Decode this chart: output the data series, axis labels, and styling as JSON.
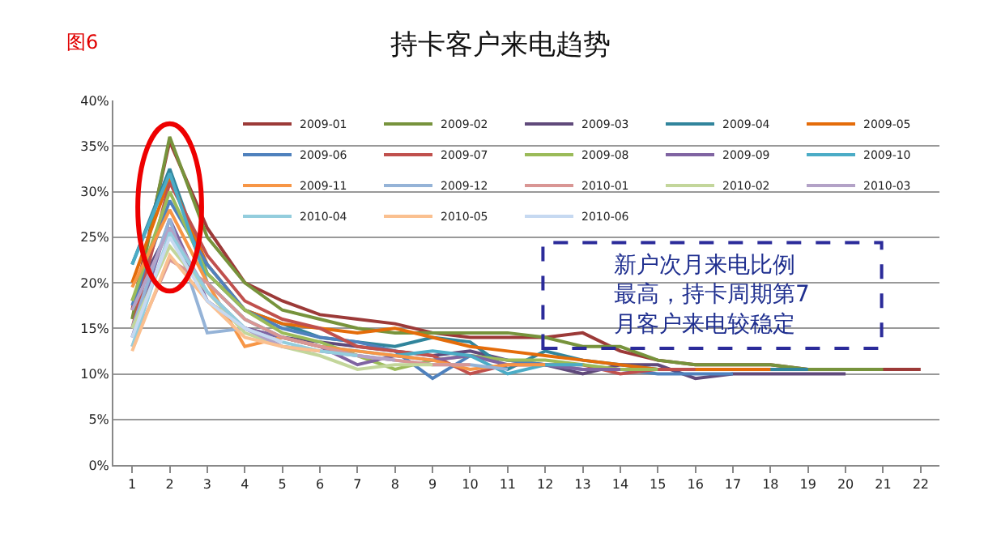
{
  "chart_data": {
    "type": "line",
    "title": "持卡客户来电趋势",
    "annotations": [
      "图6",
      "新户次月来电比例最高，持卡周期第7月客户来电较稳定"
    ],
    "x": [
      1,
      2,
      3,
      4,
      5,
      6,
      7,
      8,
      9,
      10,
      11,
      12,
      13,
      14,
      15,
      16,
      17,
      18,
      19,
      20,
      21,
      22
    ],
    "xlim": [
      0.5,
      22.5
    ],
    "xticks": [
      1,
      2,
      3,
      4,
      5,
      6,
      7,
      8,
      9,
      10,
      11,
      12,
      13,
      14,
      15,
      16,
      17,
      18,
      19,
      20,
      21,
      22
    ],
    "ylim": [
      0,
      40
    ],
    "yticks": [
      {
        "value": 0,
        "label": "0%"
      },
      {
        "value": 5,
        "label": "5%"
      },
      {
        "value": 10,
        "label": "10%"
      },
      {
        "value": 15,
        "label": "15%"
      },
      {
        "value": 20,
        "label": "20%"
      },
      {
        "value": 25,
        "label": "25%"
      },
      {
        "value": 30,
        "label": "30%"
      },
      {
        "value": 35,
        "label": "35%"
      },
      {
        "value": 40,
        "label": "40%"
      }
    ],
    "grid": "y",
    "legend": "top right",
    "marker": "none",
    "line_style": "solid",
    "series": [
      {
        "name": "2009-01",
        "color": "#9c3a38",
        "values": [
          17,
          35.5,
          26,
          20,
          18,
          16.5,
          16,
          15.5,
          14.5,
          14,
          14,
          14,
          14.5,
          12.5,
          11.5,
          11,
          11,
          11,
          10.5,
          10.5,
          10.5,
          10.5
        ]
      },
      {
        "name": "2009-02",
        "color": "#77933c",
        "values": [
          16,
          36,
          25,
          20,
          17,
          16,
          15,
          14.5,
          14.5,
          14.5,
          14.5,
          14,
          13,
          13,
          11.5,
          11,
          11,
          11,
          10.5,
          10.5,
          10.5,
          null
        ]
      },
      {
        "name": "2009-03",
        "color": "#604a7b",
        "values": [
          18,
          26,
          18,
          15,
          14,
          13.5,
          13,
          12.5,
          12,
          12.5,
          11.5,
          11,
          10,
          11,
          11,
          9.5,
          10,
          10,
          10,
          10,
          null,
          null
        ]
      },
      {
        "name": "2009-04",
        "color": "#31859c",
        "values": [
          22,
          32.5,
          21,
          17,
          15.5,
          14,
          13.5,
          13,
          14,
          13.5,
          10.5,
          12.5,
          11.5,
          11,
          10.5,
          10.5,
          10.5,
          10.5,
          10.5,
          null,
          null,
          null
        ]
      },
      {
        "name": "2009-05",
        "color": "#e46c0a",
        "values": [
          20,
          31.5,
          22,
          17,
          15.5,
          15,
          14.5,
          15,
          14,
          13,
          12.5,
          12,
          11.5,
          11,
          10.5,
          10.5,
          10.5,
          10.5,
          null,
          null,
          null,
          null
        ]
      },
      {
        "name": "2009-06",
        "color": "#4f81bd",
        "values": [
          17.5,
          29,
          22,
          17,
          15,
          14,
          13.5,
          12.5,
          9.5,
          12,
          11.5,
          11,
          10.5,
          10.5,
          10,
          10,
          10,
          null,
          null,
          null,
          null,
          null
        ]
      },
      {
        "name": "2009-07",
        "color": "#c0504d",
        "values": [
          15,
          31,
          23,
          18,
          16,
          15,
          13,
          12.5,
          12,
          10,
          11,
          11,
          11,
          10,
          10.5,
          10.5,
          null,
          null,
          null,
          null,
          null,
          null
        ]
      },
      {
        "name": "2009-08",
        "color": "#9bbb59",
        "values": [
          18,
          30,
          21,
          17,
          14.5,
          13.5,
          12,
          10.5,
          11.5,
          12,
          11.5,
          11.5,
          11,
          10.5,
          10.5,
          null,
          null,
          null,
          null,
          null,
          null,
          null
        ]
      },
      {
        "name": "2009-09",
        "color": "#8064a2",
        "values": [
          14,
          27,
          18,
          15,
          14,
          13,
          11,
          12,
          11.5,
          12,
          11,
          11,
          10.5,
          10.5,
          null,
          null,
          null,
          null,
          null,
          null,
          null,
          null
        ]
      },
      {
        "name": "2009-10",
        "color": "#4bacc6",
        "values": [
          22,
          32,
          20,
          16,
          14,
          13,
          12.5,
          12,
          12.5,
          12,
          10,
          11,
          11,
          null,
          null,
          null,
          null,
          null,
          null,
          null,
          null,
          null
        ]
      },
      {
        "name": "2009-11",
        "color": "#f79646",
        "values": [
          19.5,
          28,
          20,
          13,
          14,
          13,
          12.5,
          12,
          11.5,
          10.5,
          11,
          11,
          null,
          null,
          null,
          null,
          null,
          null,
          null,
          null,
          null,
          null
        ]
      },
      {
        "name": "2009-12",
        "color": "#95b3d7",
        "values": [
          15,
          27,
          14.5,
          15,
          13,
          12.5,
          12,
          11.5,
          11,
          11,
          10.5,
          null,
          null,
          null,
          null,
          null,
          null,
          null,
          null,
          null,
          null,
          null
        ]
      },
      {
        "name": "2010-01",
        "color": "#d99694",
        "values": [
          13,
          22.5,
          20,
          16,
          14,
          13,
          12,
          11.5,
          11,
          11,
          null,
          null,
          null,
          null,
          null,
          null,
          null,
          null,
          null,
          null,
          null,
          null
        ]
      },
      {
        "name": "2010-02",
        "color": "#c3d69b",
        "values": [
          15,
          24,
          19,
          14.5,
          13,
          12,
          10.5,
          11,
          11,
          null,
          null,
          null,
          null,
          null,
          null,
          null,
          null,
          null,
          null,
          null,
          null,
          null
        ]
      },
      {
        "name": "2010-03",
        "color": "#b3a2c7",
        "values": [
          17,
          26,
          19,
          15,
          13,
          12.5,
          12,
          11.5,
          null,
          null,
          null,
          null,
          null,
          null,
          null,
          null,
          null,
          null,
          null,
          null,
          null,
          null
        ]
      },
      {
        "name": "2010-04",
        "color": "#93cddd",
        "values": [
          13,
          25.5,
          19,
          15,
          13.5,
          12.5,
          12,
          null,
          null,
          null,
          null,
          null,
          null,
          null,
          null,
          null,
          null,
          null,
          null,
          null,
          null,
          null
        ]
      },
      {
        "name": "2010-05",
        "color": "#fac090",
        "values": [
          12.5,
          23,
          18,
          14,
          13,
          12.5,
          null,
          null,
          null,
          null,
          null,
          null,
          null,
          null,
          null,
          null,
          null,
          null,
          null,
          null,
          null,
          null
        ]
      },
      {
        "name": "2010-06",
        "color": "#c6d9f1",
        "values": [
          14,
          25,
          18,
          15,
          13.5,
          null,
          null,
          null,
          null,
          null,
          null,
          null,
          null,
          null,
          null,
          null,
          null,
          null,
          null,
          null,
          null,
          null
        ]
      }
    ]
  }
}
